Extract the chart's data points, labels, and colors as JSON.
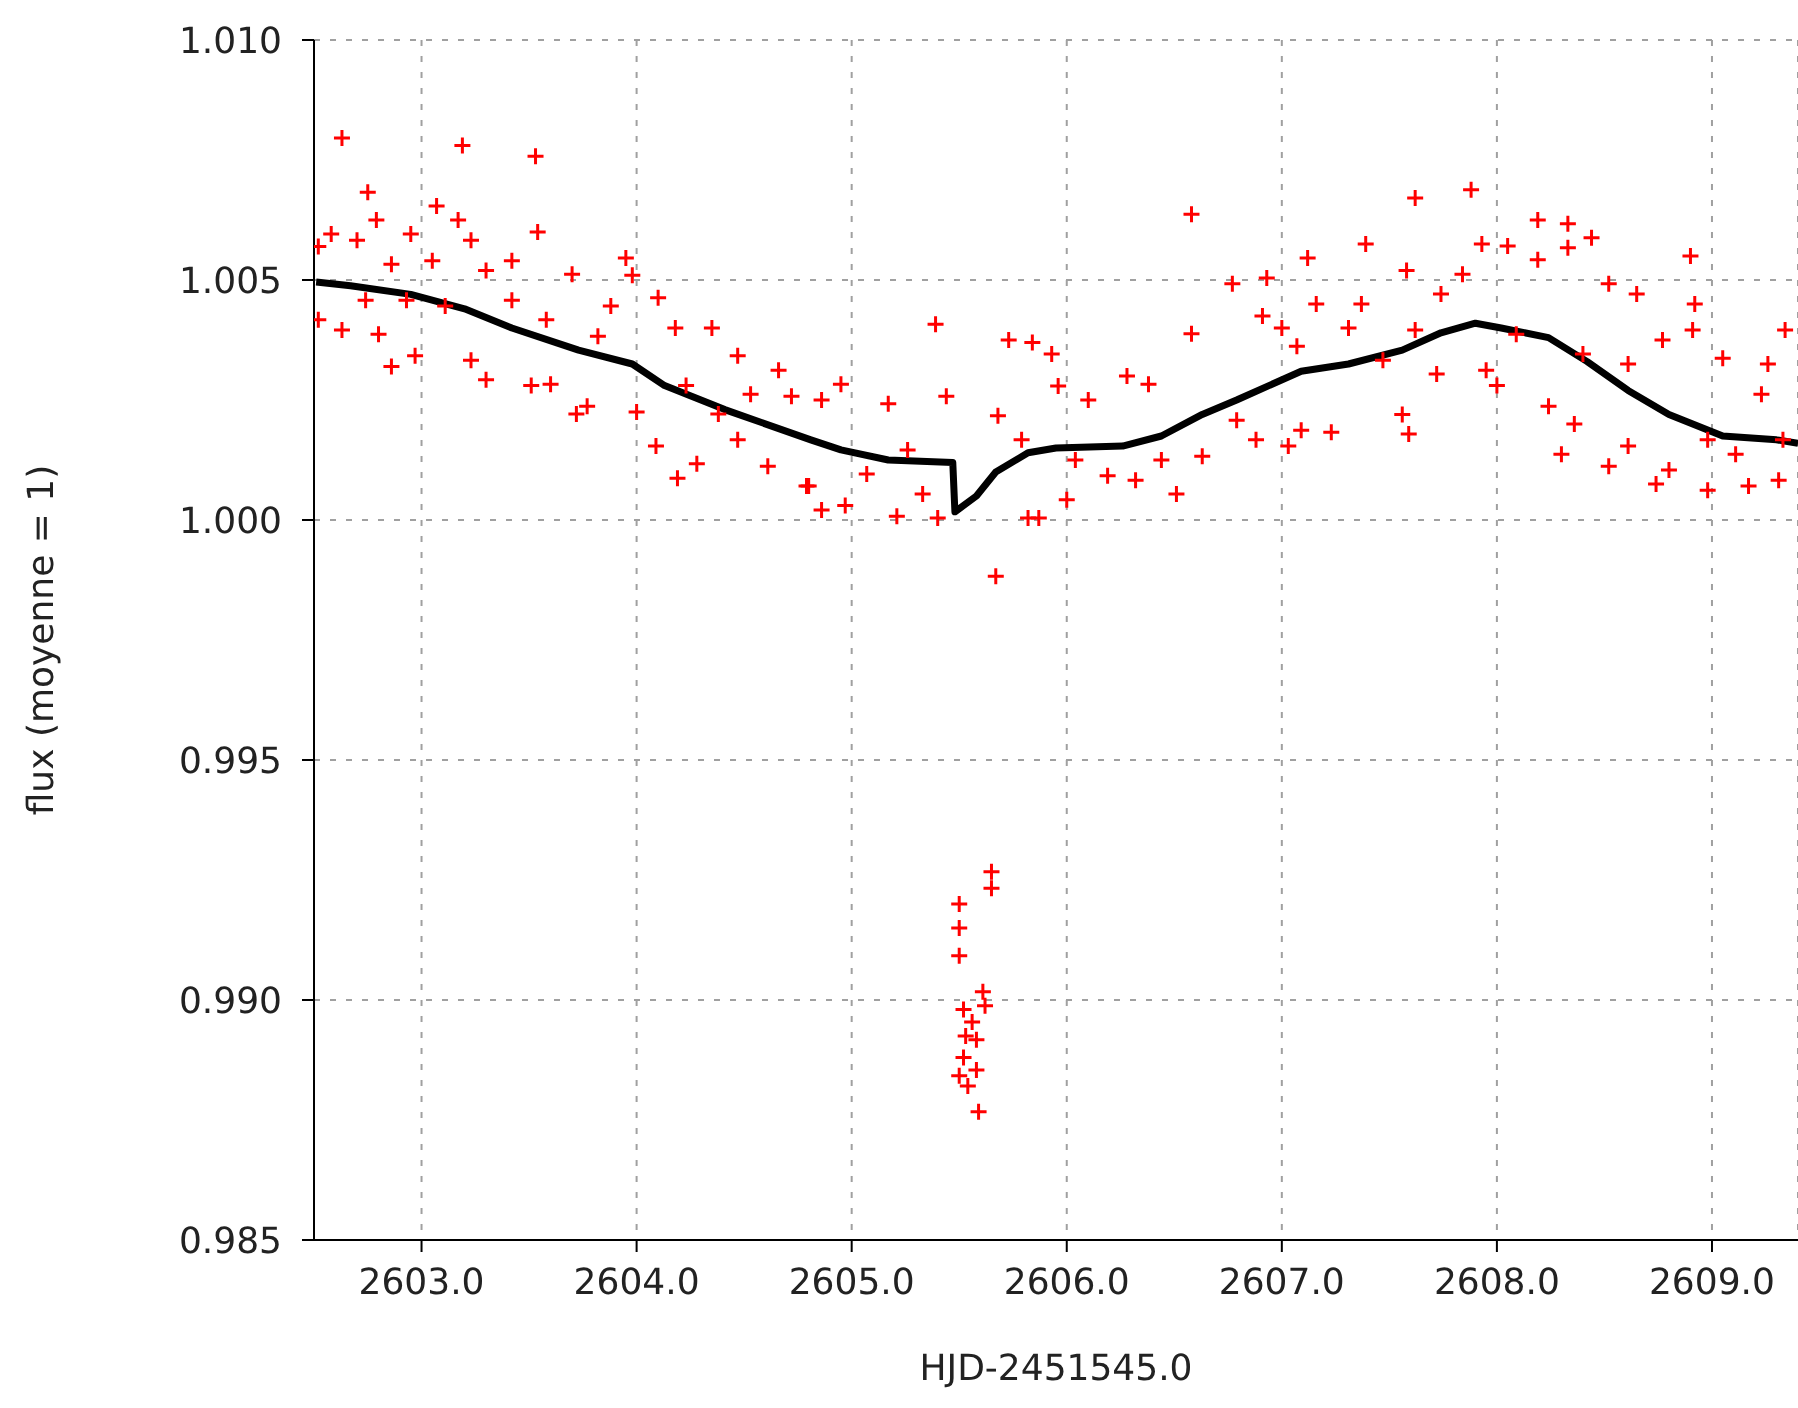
{
  "chart_data": {
    "type": "scatter",
    "xlabel": "HJD-2451545.0",
    "ylabel": "flux (moyenne = 1)",
    "xlim": [
      2602.5,
      2609.4
    ],
    "xticks": [
      {
        "value": 2603,
        "label": "2603.0"
      },
      {
        "value": 2604,
        "label": "2604.0"
      },
      {
        "value": 2605,
        "label": "2605.0"
      },
      {
        "value": 2606,
        "label": "2606.0"
      },
      {
        "value": 2607,
        "label": "2607.0"
      },
      {
        "value": 2608,
        "label": "2608.0"
      },
      {
        "value": 2609,
        "label": "2609.0"
      }
    ],
    "ylim": [
      0.985,
      1.01
    ],
    "yticks": [
      0.985,
      {
        "value": 0.99,
        "label": "0.990"
      },
      0.995,
      {
        "value": 1.0,
        "label": "1.000"
      },
      1.005,
      {
        "value": 1.01,
        "label": "1.010"
      }
    ],
    "grid": true,
    "series": [
      {
        "color": "#ff0000",
        "marker": "cross",
        "x": [
          2602.63,
          2603.19,
          2603.53,
          2602.75,
          2602.79,
          2603.07,
          2603.17,
          2603.54,
          2602.58,
          2602.95,
          2603.23,
          2602.52,
          2602.7,
          2602.86,
          2603.05,
          2603.3,
          2603.42,
          2603.95,
          2603.98,
          2604.1,
          2603.7,
          2602.63,
          2602.52,
          2602.8,
          2602.86,
          2602.97,
          2603.23,
          2603.3,
          2603.51,
          2603.72,
          2603.77,
          2603.6,
          2604.0,
          2604.09,
          2604.19,
          2604.28,
          2604.35,
          2604.18,
          2604.47,
          2604.61,
          2604.79,
          2604.47,
          2604.66,
          2604.72,
          2603.82,
          2602.74,
          2602.93,
          2603.11,
          2603.42,
          2603.58,
          2603.88,
          2604.23,
          2604.38,
          2604.53,
          2605.39,
          2605.73,
          2605.93,
          2605.67,
          2604.86,
          2604.95,
          2604.86,
          2604.97,
          2605.21,
          2605.4,
          2605.44,
          2605.17,
          2605.26,
          2605.07,
          2605.33,
          2604.8,
          2605.68,
          2605.79,
          2605.82,
          2605.87,
          2605.96,
          2606.0,
          2606.1,
          2606.28,
          2606.38,
          2606.04,
          2606.19,
          2606.32,
          2606.51,
          2606.44,
          2606.63,
          2606.58,
          2606.77,
          2606.93,
          2606.79,
          2606.91,
          2607.07,
          2606.88,
          2606.58,
          2605.84,
          2607.62,
          2607.88,
          2607.39,
          2607.12,
          2608.19,
          2608.33,
          2608.33,
          2608.44,
          2608.9,
          2608.05,
          2607.93,
          2607.58,
          2607.84,
          2608.19,
          2608.52,
          2608.65,
          2608.92,
          2608.91,
          2607.16,
          2607.37,
          2607.74,
          2607.0,
          2609.34,
          2609.26,
          2609.05,
          2608.77,
          2607.09,
          2607.03,
          2607.23,
          2607.59,
          2607.56,
          2607.72,
          2608.0,
          2607.95,
          2608.24,
          2608.3,
          2608.36,
          2608.52,
          2608.61,
          2608.74,
          2608.8,
          2608.98,
          2609.17,
          2609.31,
          2609.11,
          2609.33,
          2608.98,
          2607.47,
          2607.31,
          2607.62,
          2608.09,
          2608.4,
          2608.61,
          2609.23,
          2605.65,
          2605.65,
          2605.5,
          2605.5,
          2605.5,
          2605.61,
          2605.62,
          2605.52,
          2605.56,
          2605.53,
          2605.58,
          2605.52,
          2605.58,
          2605.5,
          2605.54,
          2605.59
        ],
        "values": [
          1.00796,
          1.0078,
          1.00758,
          1.00683,
          1.00625,
          1.00654,
          1.00625,
          1.006,
          1.00596,
          1.00596,
          1.00583,
          1.0057,
          1.00583,
          1.00533,
          1.0054,
          1.0052,
          1.0054,
          1.00546,
          1.0051,
          1.00463,
          1.00512,
          1.00396,
          1.00417,
          1.00387,
          1.0032,
          1.00342,
          1.00333,
          1.00292,
          1.0028,
          1.00221,
          1.00237,
          1.00283,
          1.00225,
          1.00154,
          1.00087,
          1.00117,
          1.004,
          1.004,
          1.00167,
          1.00112,
          1.00071,
          1.00342,
          1.00312,
          1.00258,
          1.00383,
          1.00458,
          1.00458,
          1.00446,
          1.00458,
          1.00417,
          1.00446,
          1.0028,
          1.00221,
          1.00262,
          1.00408,
          1.00375,
          1.00346,
          0.99883,
          1.0025,
          1.00283,
          1.00021,
          1.0003,
          1.00008,
          1.00004,
          1.00258,
          1.00242,
          1.00146,
          1.00096,
          1.00054,
          1.00071,
          1.00217,
          1.00167,
          1.00004,
          1.00004,
          1.00279,
          1.00042,
          1.0025,
          1.003,
          1.00283,
          1.00125,
          1.00092,
          1.00083,
          1.00054,
          1.00125,
          1.00133,
          1.00388,
          1.00492,
          1.00504,
          1.00208,
          1.00425,
          1.00362,
          1.00167,
          1.00637,
          1.0037,
          1.00671,
          1.00688,
          1.00575,
          1.00546,
          1.00625,
          1.00617,
          1.00567,
          1.00588,
          1.0055,
          1.00571,
          1.00575,
          1.0052,
          1.00512,
          1.00542,
          1.00492,
          1.00471,
          1.0045,
          1.00396,
          1.0045,
          1.0045,
          1.00471,
          1.004,
          1.00396,
          1.00325,
          1.00337,
          1.00375,
          1.00187,
          1.00154,
          1.00183,
          1.00179,
          1.0022,
          1.00304,
          1.0028,
          1.00312,
          1.00237,
          1.00137,
          1.002,
          1.00112,
          1.00154,
          1.00075,
          1.00104,
          1.00062,
          1.00071,
          1.00083,
          1.00137,
          1.00167,
          1.00167,
          1.00333,
          1.004,
          1.00396,
          1.00387,
          1.00346,
          1.00325,
          1.00262,
          0.99267,
          0.99233,
          0.992,
          0.9915,
          0.99092,
          0.99017,
          0.98988,
          0.9898,
          0.98954,
          0.98925,
          0.98917,
          0.9888,
          0.98854,
          0.98842,
          0.98821,
          0.98767
        ]
      },
      {
        "type": "line",
        "color": "#000000",
        "x": [
          2602.51,
          2602.67,
          2602.95,
          2603.2,
          2603.42,
          2603.73,
          2603.98,
          2604.13,
          2604.41,
          2604.81,
          2604.95,
          2605.17,
          2605.47,
          2605.48,
          2605.58,
          2605.67,
          2605.82,
          2605.95,
          2606.26,
          2606.44,
          2606.63,
          2606.79,
          2607.09,
          2607.31,
          2607.56,
          2607.74,
          2607.9,
          2608.02,
          2608.24,
          2608.42,
          2608.61,
          2608.8,
          2609.05,
          2609.3,
          2609.4
        ],
        "values": [
          1.00496,
          1.00488,
          1.0047,
          1.0044,
          1.004,
          1.00354,
          1.00325,
          1.0028,
          1.0023,
          1.00167,
          1.00146,
          1.00125,
          1.0012,
          1.00017,
          1.0005,
          1.001,
          1.0014,
          1.0015,
          1.00154,
          1.00175,
          1.0022,
          1.0025,
          1.0031,
          1.00325,
          1.00354,
          1.0039,
          1.0041,
          1.004,
          1.0038,
          1.0033,
          1.0027,
          1.0022,
          1.00175,
          1.00167,
          1.0016
        ]
      }
    ]
  }
}
